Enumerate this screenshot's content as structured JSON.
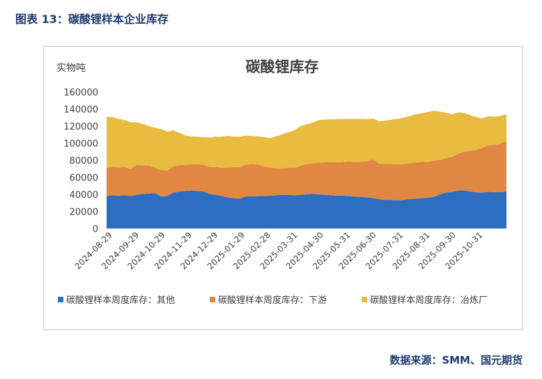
{
  "figure_title": "图表 13：碳酸锂样本企业库存",
  "source": "数据来源：SMM、国元期货",
  "chart_data": {
    "type": "area",
    "stacked": true,
    "title": "碳酸锂库存",
    "ylabel": "实物吨",
    "ylim": [
      0,
      160000
    ],
    "yticks": [
      0,
      20000,
      40000,
      60000,
      80000,
      100000,
      120000,
      140000,
      160000
    ],
    "ytick_labels": [
      "0",
      "20000",
      "40000",
      "60000",
      "80000",
      "100000",
      "120000",
      "140000",
      "160000"
    ],
    "grid": false,
    "legend": "bottom",
    "x_tick_labels": [
      "2024-08-29",
      "2024-09-29",
      "2024-10-29",
      "2024-11-29",
      "2024-12-29",
      "2025-01-29",
      "2025-02-28",
      "2025-03-31",
      "2025-04-30",
      "2025-05-31",
      "2025-06-30",
      "2025-07-31",
      "2025-08-31",
      "2025-09-30",
      "2025-10-31"
    ],
    "x": [
      "2024-08-22",
      "2024-08-29",
      "2024-09-05",
      "2024-09-12",
      "2024-09-19",
      "2024-09-26",
      "2024-10-03",
      "2024-10-10",
      "2024-10-17",
      "2024-10-24",
      "2024-10-31",
      "2024-11-07",
      "2024-11-14",
      "2024-11-21",
      "2024-11-28",
      "2024-12-05",
      "2024-12-12",
      "2024-12-19",
      "2024-12-26",
      "2025-01-02",
      "2025-01-09",
      "2025-01-16",
      "2025-01-23",
      "2025-01-30",
      "2025-02-06",
      "2025-02-13",
      "2025-02-20",
      "2025-02-27",
      "2025-03-06",
      "2025-03-13",
      "2025-03-20",
      "2025-03-27",
      "2025-04-03",
      "2025-04-10",
      "2025-04-17",
      "2025-04-24",
      "2025-05-01",
      "2025-05-08",
      "2025-05-15",
      "2025-05-22",
      "2025-05-29",
      "2025-06-05",
      "2025-06-12",
      "2025-06-19",
      "2025-06-26",
      "2025-07-03",
      "2025-07-10",
      "2025-07-17",
      "2025-07-24",
      "2025-07-31",
      "2025-08-07",
      "2025-08-14",
      "2025-08-21",
      "2025-08-28",
      "2025-09-04",
      "2025-09-11",
      "2025-09-18",
      "2025-09-25",
      "2025-10-02",
      "2025-10-09",
      "2025-10-16",
      "2025-10-23",
      "2025-10-30",
      "2025-11-06",
      "2025-11-13",
      "2025-11-20",
      "2025-11-27"
    ],
    "series": [
      {
        "name": "碳酸锂样本周度库存：其他",
        "color": "#2e6ec0",
        "values": [
          38000,
          39000,
          38500,
          39000,
          38000,
          39500,
          40500,
          41000,
          41500,
          37500,
          38000,
          42000,
          43500,
          44000,
          44500,
          44000,
          43500,
          40500,
          39500,
          38000,
          36500,
          35500,
          35000,
          37500,
          37500,
          38000,
          38000,
          38500,
          39000,
          39500,
          39500,
          39000,
          39500,
          40000,
          40500,
          40000,
          39500,
          39000,
          38500,
          38500,
          38000,
          37500,
          37000,
          36500,
          35500,
          34500,
          33500,
          33500,
          33000,
          33500,
          34500,
          35000,
          35500,
          36000,
          37000,
          40000,
          42000,
          43000,
          44500,
          44500,
          43500,
          42500,
          42000,
          43000,
          42500,
          42500,
          43500
        ]
      },
      {
        "name": "碳酸锂样本周度库存：下游",
        "color": "#e18744",
        "values": [
          33000,
          33500,
          33000,
          33000,
          32000,
          35000,
          33500,
          32500,
          29500,
          31000,
          30000,
          31000,
          31000,
          30500,
          30500,
          31500,
          31000,
          31500,
          32500,
          33000,
          34500,
          36500,
          37000,
          37500,
          38000,
          37000,
          34500,
          33000,
          31500,
          31000,
          31500,
          32000,
          34000,
          35500,
          36000,
          37000,
          38000,
          38500,
          39000,
          39500,
          40500,
          40500,
          41000,
          42500,
          45500,
          41500,
          42000,
          42000,
          42000,
          42000,
          42000,
          42500,
          42500,
          42000,
          42500,
          40500,
          40500,
          41000,
          43000,
          45500,
          47500,
          49500,
          52500,
          54500,
          55500,
          57000,
          59000
        ]
      },
      {
        "name": "碳酸锂样本周度库存：冶炼厂",
        "color": "#e9bb3f",
        "values": [
          60000,
          58000,
          57000,
          55000,
          54500,
          50000,
          48500,
          46500,
          47000,
          48000,
          45500,
          42000,
          37500,
          34500,
          33000,
          32000,
          32500,
          34500,
          35500,
          36500,
          37500,
          35500,
          35500,
          34000,
          33000,
          33000,
          34500,
          34500,
          37500,
          40000,
          42000,
          44000,
          46500,
          46500,
          47500,
          50000,
          50000,
          50500,
          50500,
          50500,
          50000,
          50500,
          50500,
          49000,
          48000,
          49500,
          51000,
          52000,
          53500,
          54500,
          55000,
          56500,
          57000,
          58500,
          58500,
          56500,
          53000,
          50000,
          48500,
          45500,
          42000,
          38500,
          34500,
          34000,
          33000,
          32500,
          31500
        ]
      }
    ]
  }
}
